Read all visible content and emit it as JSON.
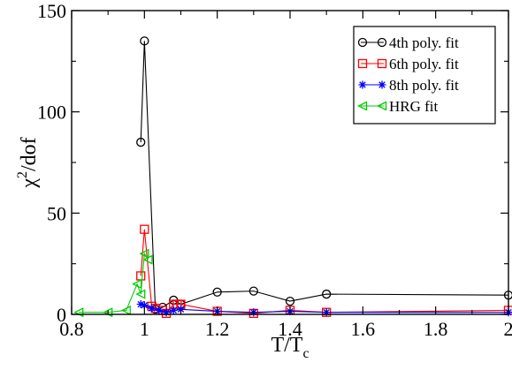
{
  "chart_data": {
    "type": "line",
    "title": "",
    "xlabel": {
      "main": "T/T",
      "sub": "c"
    },
    "ylabel": {
      "main": "χ",
      "sup": "2",
      "rest": "/dof"
    },
    "xlim": [
      0.8,
      2.0
    ],
    "ylim": [
      0,
      150
    ],
    "xticks": [
      0.8,
      1.0,
      1.2,
      1.4,
      1.6,
      1.8,
      2.0
    ],
    "xtick_labels": [
      "0.8",
      "1",
      "1.2",
      "1.4",
      "1.6",
      "1.8",
      "2"
    ],
    "yticks": [
      0,
      50,
      100,
      150
    ],
    "ytick_labels": [
      "0",
      "50",
      "100",
      "150"
    ],
    "grid": false,
    "legend_position": "top-right",
    "series": [
      {
        "name": "4th poly. fit",
        "color": "#000000",
        "marker": "circle",
        "x": [
          0.99,
          1.0,
          1.03,
          1.05,
          1.08,
          1.1,
          1.2,
          1.3,
          1.4,
          1.5,
          2.0
        ],
        "y": [
          85,
          135,
          2.5,
          3.5,
          7,
          5,
          11,
          11.5,
          6.5,
          10,
          9.5
        ]
      },
      {
        "name": "6th poly. fit",
        "color": "#ff0000",
        "marker": "square",
        "x": [
          0.99,
          1.0,
          1.02,
          1.03,
          1.05,
          1.06,
          1.08,
          1.09,
          1.1,
          1.2,
          1.3,
          1.4,
          1.5,
          2.0
        ],
        "y": [
          19,
          42,
          4,
          3,
          2,
          0.5,
          5,
          5,
          5,
          1.5,
          0.5,
          2,
          1,
          2
        ]
      },
      {
        "name": "8th poly. fit",
        "color": "#0000ff",
        "marker": "star",
        "x": [
          0.99,
          1.0,
          1.02,
          1.04,
          1.06,
          1.08,
          1.1,
          1.2,
          1.3,
          1.4,
          1.5,
          2.0
        ],
        "y": [
          5,
          4.5,
          3,
          2,
          1,
          2,
          2.5,
          1.5,
          1,
          1.5,
          1,
          1
        ]
      },
      {
        "name": "HRG fit",
        "color": "#00cc00",
        "marker": "triangle-left",
        "x": [
          0.82,
          0.9,
          0.95,
          0.98,
          0.99,
          1.0,
          1.01
        ],
        "y": [
          1,
          1,
          2,
          15,
          10,
          30,
          27
        ]
      }
    ]
  }
}
